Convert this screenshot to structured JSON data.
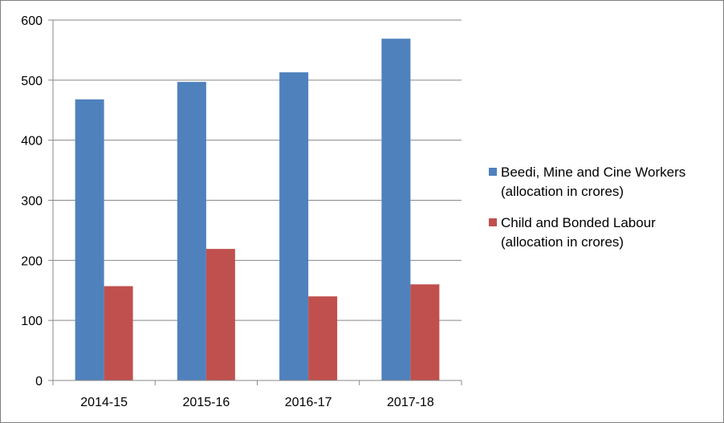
{
  "chart_data": {
    "type": "bar",
    "title": "",
    "xlabel": "",
    "ylabel": "",
    "categories": [
      "2014-15",
      "2015-16",
      "2016-17",
      "2017-18"
    ],
    "series": [
      {
        "name": "Beedi, Mine and Cine Workers (allocation in crores)",
        "name_lines": [
          "Beedi, Mine and Cine Workers",
          "(allocation in crores)"
        ],
        "color": "#4f81bd",
        "values": [
          468,
          497,
          513,
          569
        ]
      },
      {
        "name": "Child and Bonded Labour (allocation in crores)",
        "name_lines": [
          "Child and Bonded Labour",
          "(allocation in crores)"
        ],
        "color": "#c0504d",
        "values": [
          157,
          219,
          140,
          160
        ]
      }
    ],
    "ylim": [
      0,
      600
    ],
    "yticks": [
      0,
      100,
      200,
      300,
      400,
      500,
      600
    ],
    "grid": true,
    "legend": "right"
  }
}
